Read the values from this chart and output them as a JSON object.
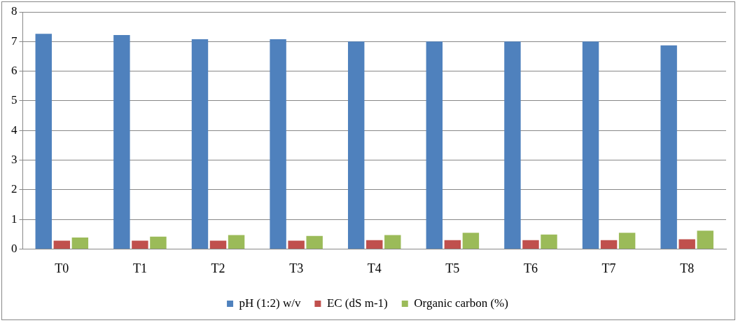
{
  "chart_data": {
    "type": "bar",
    "categories": [
      "T0",
      "T1",
      "T2",
      "T3",
      "T4",
      "T5",
      "T6",
      "T7",
      "T8"
    ],
    "series": [
      {
        "name": "pH (1:2) w/v",
        "color": "#4f81bd",
        "values": [
          7.26,
          7.22,
          7.08,
          7.08,
          7.0,
          7.0,
          7.0,
          7.0,
          6.87
        ]
      },
      {
        "name": "EC (dS m-1)",
        "color": "#c0504d",
        "values": [
          0.28,
          0.28,
          0.28,
          0.28,
          0.3,
          0.3,
          0.3,
          0.3,
          0.33
        ]
      },
      {
        "name": "Organic carbon (%)",
        "color": "#9bbb59",
        "values": [
          0.39,
          0.42,
          0.47,
          0.44,
          0.47,
          0.55,
          0.49,
          0.55,
          0.62
        ]
      }
    ],
    "ylim": [
      0,
      8
    ],
    "yticks": [
      0,
      1,
      2,
      3,
      4,
      5,
      6,
      7,
      8
    ],
    "grid": "y",
    "legend": "bottom"
  }
}
